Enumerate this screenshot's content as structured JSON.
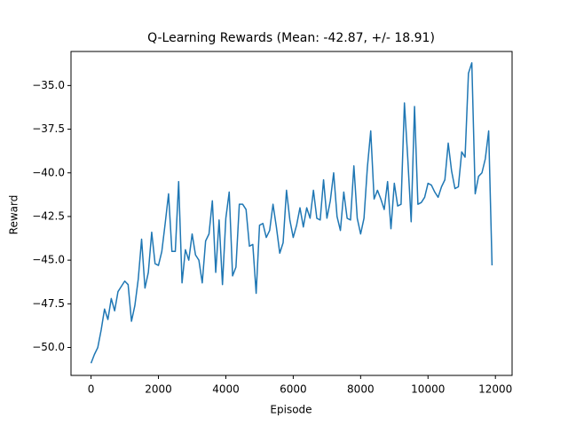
{
  "chart_data": {
    "type": "line",
    "title": "Q-Learning Rewards (Mean: -42.87, +/- 18.91)",
    "x_label": "Episode",
    "y_label": "Reward",
    "x": [
      0,
      100,
      200,
      300,
      400,
      500,
      600,
      700,
      800,
      900,
      1000,
      1100,
      1200,
      1300,
      1400,
      1500,
      1600,
      1700,
      1800,
      1900,
      2000,
      2100,
      2200,
      2300,
      2400,
      2500,
      2600,
      2700,
      2800,
      2900,
      3000,
      3100,
      3200,
      3300,
      3400,
      3500,
      3600,
      3700,
      3800,
      3900,
      4000,
      4100,
      4200,
      4300,
      4400,
      4500,
      4600,
      4700,
      4800,
      4900,
      5000,
      5100,
      5200,
      5300,
      5400,
      5500,
      5600,
      5700,
      5800,
      5900,
      6000,
      6100,
      6200,
      6300,
      6400,
      6500,
      6600,
      6700,
      6800,
      6900,
      7000,
      7100,
      7200,
      7300,
      7400,
      7500,
      7600,
      7700,
      7800,
      7900,
      8000,
      8100,
      8200,
      8300,
      8400,
      8500,
      8600,
      8700,
      8800,
      8900,
      9000,
      9100,
      9200,
      9300,
      9400,
      9500,
      9600,
      9700,
      9800,
      9900,
      10000,
      10100,
      10200,
      10300,
      10400,
      10500,
      10600,
      10700,
      10800,
      10900,
      11000,
      11100,
      11200,
      11300,
      11400,
      11500,
      11600,
      11700,
      11800,
      11900
    ],
    "series": [
      {
        "color": "#1f77b4",
        "values": [
          -50.9,
          -50.4,
          -50.0,
          -49.0,
          -47.8,
          -48.4,
          -47.2,
          -47.9,
          -46.8,
          -46.5,
          -46.2,
          -46.4,
          -48.5,
          -47.6,
          -46.1,
          -43.8,
          -46.6,
          -45.7,
          -43.4,
          -45.2,
          -45.3,
          -44.5,
          -42.9,
          -41.2,
          -44.5,
          -44.5,
          -40.5,
          -46.3,
          -44.4,
          -45.0,
          -43.5,
          -44.7,
          -45.0,
          -46.3,
          -43.9,
          -43.5,
          -41.6,
          -45.7,
          -42.7,
          -46.4,
          -42.6,
          -41.1,
          -45.9,
          -45.4,
          -41.8,
          -41.8,
          -42.1,
          -44.2,
          -44.1,
          -46.9,
          -43.0,
          -42.9,
          -43.7,
          -43.3,
          -41.8,
          -43.1,
          -44.6,
          -44.0,
          -41.0,
          -42.7,
          -43.7,
          -43.0,
          -42.0,
          -43.1,
          -42.0,
          -42.6,
          -41.0,
          -42.6,
          -42.7,
          -40.4,
          -42.6,
          -41.6,
          -40.0,
          -42.5,
          -43.3,
          -41.1,
          -42.6,
          -42.7,
          -39.6,
          -42.6,
          -43.5,
          -42.6,
          -39.7,
          -37.6,
          -41.5,
          -41.0,
          -41.5,
          -42.1,
          -40.5,
          -43.2,
          -40.6,
          -41.9,
          -41.8,
          -36.0,
          -39.2,
          -42.8,
          -36.2,
          -41.8,
          -41.7,
          -41.4,
          -40.6,
          -40.7,
          -41.1,
          -41.4,
          -40.8,
          -40.4,
          -38.3,
          -39.9,
          -40.9,
          -40.8,
          -38.8,
          -39.1,
          -34.3,
          -33.7,
          -41.2,
          -40.2,
          -40.0,
          -39.2,
          -37.6,
          -45.3
        ]
      }
    ],
    "xlim": [
      -595,
      12495
    ],
    "ylim": [
      -51.6,
      -33.05
    ],
    "xticks": [
      0,
      2000,
      4000,
      6000,
      8000,
      10000,
      12000
    ],
    "yticks": [
      {
        "value": -50,
        "label": "−50.0"
      },
      {
        "value": -47.5,
        "label": "−47.5"
      },
      {
        "value": -45,
        "label": "−45.0"
      },
      {
        "value": -42.5,
        "label": "−42.5"
      },
      {
        "value": -40,
        "label": "−40.0"
      },
      {
        "value": -37.5,
        "label": "−37.5"
      },
      {
        "value": -35,
        "label": "−35.0"
      }
    ],
    "grid": false
  }
}
